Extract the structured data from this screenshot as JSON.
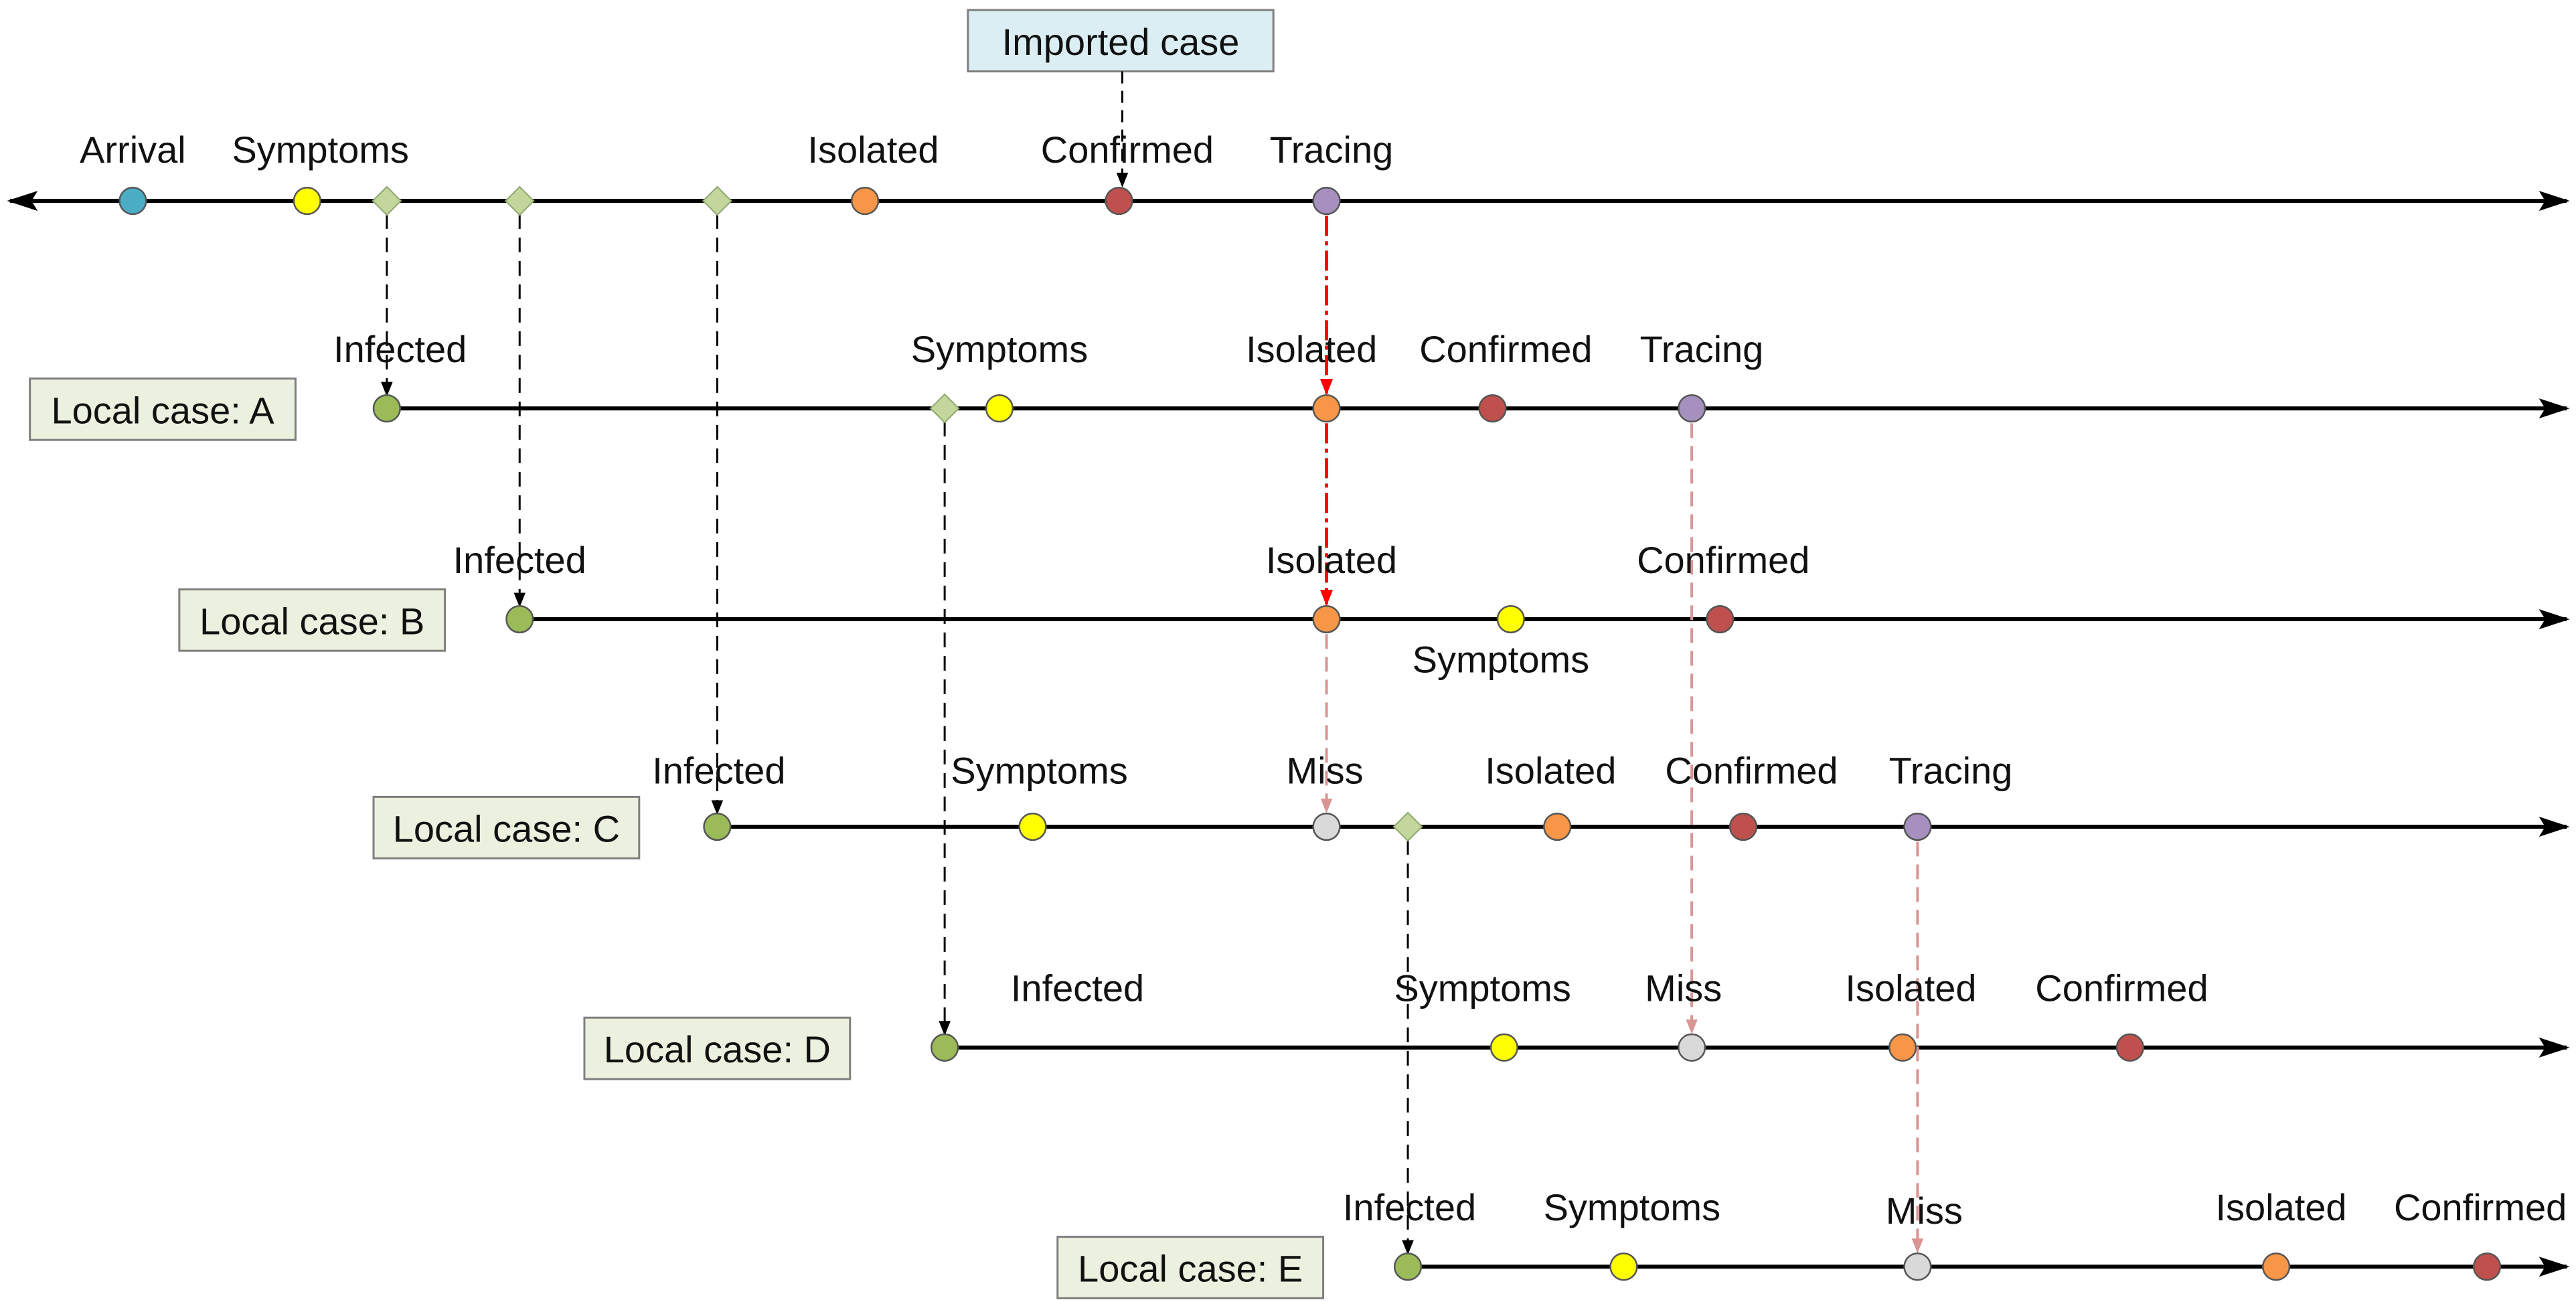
{
  "colors": {
    "arrival": "#4BACC6",
    "symptoms": "#FFFF00",
    "isolated": "#F79646",
    "confirmed": "#C0504D",
    "tracing": "#A590C0",
    "infected": "#9BBB59",
    "miss": "#D9D9D9",
    "transmission": "#C3D69B",
    "case_box": "#EBF1DE",
    "imported_box": "#DAEEF3",
    "trace_success": "#FF0000",
    "trace_miss": "#D99594"
  },
  "imported_box_label": "Imported case",
  "timelines": [
    {
      "case_label": "",
      "events": [
        {
          "type": "arrival",
          "label": "Arrival"
        },
        {
          "type": "symptoms",
          "label": "Symptoms"
        },
        {
          "type": "transmission",
          "label": ""
        },
        {
          "type": "transmission",
          "label": ""
        },
        {
          "type": "transmission",
          "label": ""
        },
        {
          "type": "isolated",
          "label": "Isolated"
        },
        {
          "type": "confirmed",
          "label": "Confirmed"
        },
        {
          "type": "tracing",
          "label": "Tracing"
        }
      ]
    },
    {
      "case_label": "Local case: A",
      "events": [
        {
          "type": "infected",
          "label": "Infected"
        },
        {
          "type": "transmission",
          "label": ""
        },
        {
          "type": "symptoms",
          "label": "Symptoms"
        },
        {
          "type": "isolated",
          "label": "Isolated"
        },
        {
          "type": "confirmed",
          "label": "Confirmed"
        },
        {
          "type": "tracing",
          "label": "Tracing"
        }
      ]
    },
    {
      "case_label": "Local case: B",
      "events": [
        {
          "type": "infected",
          "label": "Infected"
        },
        {
          "type": "isolated",
          "label": "Isolated"
        },
        {
          "type": "symptoms",
          "label": "Symptoms"
        },
        {
          "type": "confirmed",
          "label": "Confirmed"
        }
      ]
    },
    {
      "case_label": "Local case: C",
      "events": [
        {
          "type": "infected",
          "label": "Infected"
        },
        {
          "type": "symptoms",
          "label": "Symptoms"
        },
        {
          "type": "miss",
          "label": "Miss"
        },
        {
          "type": "transmission",
          "label": ""
        },
        {
          "type": "isolated",
          "label": "Isolated"
        },
        {
          "type": "confirmed",
          "label": "Confirmed"
        },
        {
          "type": "tracing",
          "label": "Tracing"
        }
      ]
    },
    {
      "case_label": "Local case: D",
      "events": [
        {
          "type": "infected",
          "label": "Infected"
        },
        {
          "type": "symptoms",
          "label": "Symptoms"
        },
        {
          "type": "miss",
          "label": "Miss"
        },
        {
          "type": "isolated",
          "label": "Isolated"
        },
        {
          "type": "confirmed",
          "label": "Confirmed"
        }
      ]
    },
    {
      "case_label": "Local case: E",
      "events": [
        {
          "type": "infected",
          "label": "Infected"
        },
        {
          "type": "symptoms",
          "label": "Symptoms"
        },
        {
          "type": "miss",
          "label": "Miss"
        },
        {
          "type": "isolated",
          "label": "Isolated"
        },
        {
          "type": "confirmed",
          "label": "Confirmed"
        }
      ]
    }
  ]
}
